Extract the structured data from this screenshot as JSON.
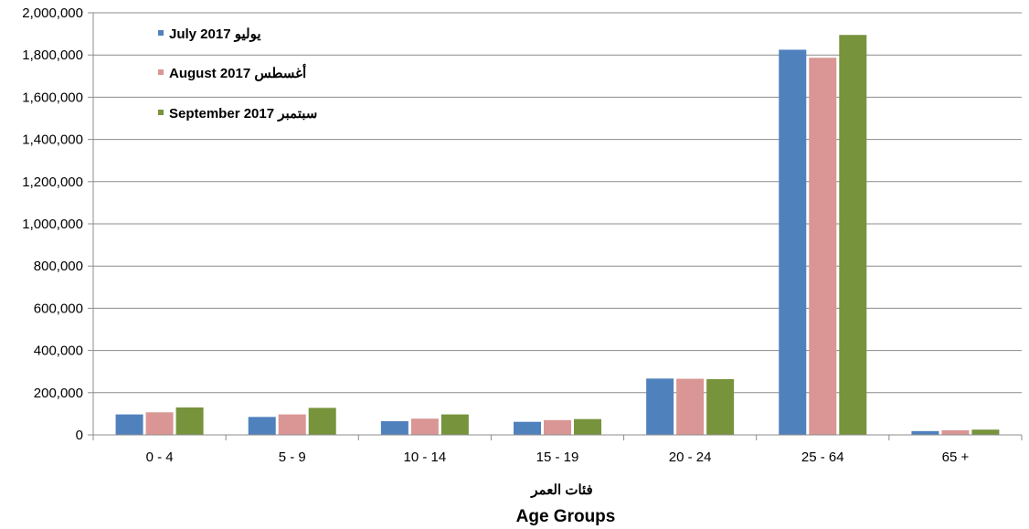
{
  "chart_data": {
    "type": "bar",
    "categories": [
      "0 - 4",
      "5 - 9",
      "10 - 14",
      "15 - 19",
      "20 - 24",
      "25 - 64",
      "65 +"
    ],
    "series": [
      {
        "name": "July  2017  يوليو",
        "color": "#4F81BD",
        "values": [
          97000,
          85000,
          65000,
          62000,
          267000,
          1825000,
          18000
        ]
      },
      {
        "name": "August 2017  أغسطس",
        "color": "#D99694",
        "values": [
          107000,
          97000,
          77000,
          70000,
          266000,
          1787000,
          22000
        ]
      },
      {
        "name": "September  2017   سبتمبر",
        "color": "#77933C",
        "values": [
          130000,
          128000,
          97000,
          75000,
          264000,
          1895000,
          25000
        ]
      }
    ],
    "ylim": [
      0,
      2000000
    ],
    "yticks": [
      "0",
      "200,000",
      "400,000",
      "600,000",
      "800,000",
      "1,000,000",
      "1,200,000",
      "1,400,000",
      "1,600,000",
      "1,800,000",
      "2,000,000"
    ],
    "xlabel_ar": "فئات العمر",
    "xlabel": "Age Groups",
    "grid": true,
    "legend_position": "top-left"
  }
}
